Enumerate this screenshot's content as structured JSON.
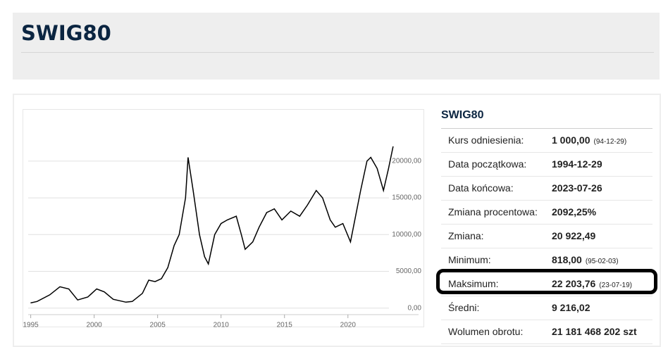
{
  "header": {
    "title": "SWIG80"
  },
  "chart_data": {
    "type": "line",
    "color": "#000000",
    "x": [
      1994.99,
      1995.5,
      1996.5,
      1997.3,
      1998.0,
      1998.7,
      1999.5,
      2000.2,
      2000.8,
      2001.5,
      2002.5,
      2003.0,
      2003.8,
      2004.3,
      2004.8,
      2005.3,
      2005.8,
      2006.3,
      2006.7,
      2007.2,
      2007.4,
      2007.8,
      2008.3,
      2008.7,
      2009.0,
      2009.5,
      2010.0,
      2010.5,
      2011.2,
      2011.6,
      2011.9,
      2012.5,
      2013.0,
      2013.6,
      2014.2,
      2014.8,
      2015.5,
      2016.2,
      2016.8,
      2017.5,
      2018.0,
      2018.6,
      2019.0,
      2019.6,
      2020.2,
      2020.6,
      2021.0,
      2021.5,
      2021.8,
      2022.3,
      2022.8,
      2023.2,
      2023.56
    ],
    "values": [
      700,
      900,
      1800,
      2900,
      2600,
      1100,
      1500,
      2600,
      2200,
      1200,
      800,
      900,
      2000,
      3800,
      3600,
      4000,
      5500,
      8500,
      10000,
      15000,
      20500,
      16000,
      10000,
      7000,
      6000,
      10000,
      11500,
      12000,
      12500,
      10000,
      8000,
      9000,
      11000,
      13000,
      13500,
      12000,
      13200,
      12500,
      14000,
      16000,
      15000,
      12000,
      11000,
      11500,
      9000,
      12500,
      16000,
      20000,
      20500,
      19000,
      16000,
      19000,
      22000
    ],
    "xlim": [
      1994.8,
      2023.9
    ],
    "xticks": [
      1995,
      2000,
      2005,
      2010,
      2015,
      2020
    ],
    "ylim": [
      -700,
      26500
    ],
    "yticks": [
      {
        "value": 0,
        "label": "0,00"
      },
      {
        "value": 5000,
        "label": "5000,00"
      },
      {
        "value": 10000,
        "label": "10000,00"
      },
      {
        "value": 15000,
        "label": "15000,00"
      },
      {
        "value": 20000,
        "label": "20000,00"
      }
    ],
    "grid": true
  },
  "table": {
    "title": "SWIG80",
    "rows": [
      {
        "label": "Kurs odniesienia:",
        "value": "1 000,00",
        "note": "(94-12-29)"
      },
      {
        "label": "Data początkowa:",
        "value": "1994-12-29"
      },
      {
        "label": "Data końcowa:",
        "value": "2023-07-26"
      },
      {
        "label": "Zmiana procentowa:",
        "value": "2092,25%"
      },
      {
        "label": "Zmiana:",
        "value": "20 922,49"
      },
      {
        "label": "Minimum:",
        "value": "818,00",
        "note": "(95-02-03)"
      },
      {
        "label": "Maksimum:",
        "value": "22 203,76",
        "note": "(23-07-19)"
      },
      {
        "label": "Średni:",
        "value": "9 216,02"
      },
      {
        "label": "Wolumen obrotu:",
        "value": "21 181 468 202 szt"
      }
    ]
  }
}
